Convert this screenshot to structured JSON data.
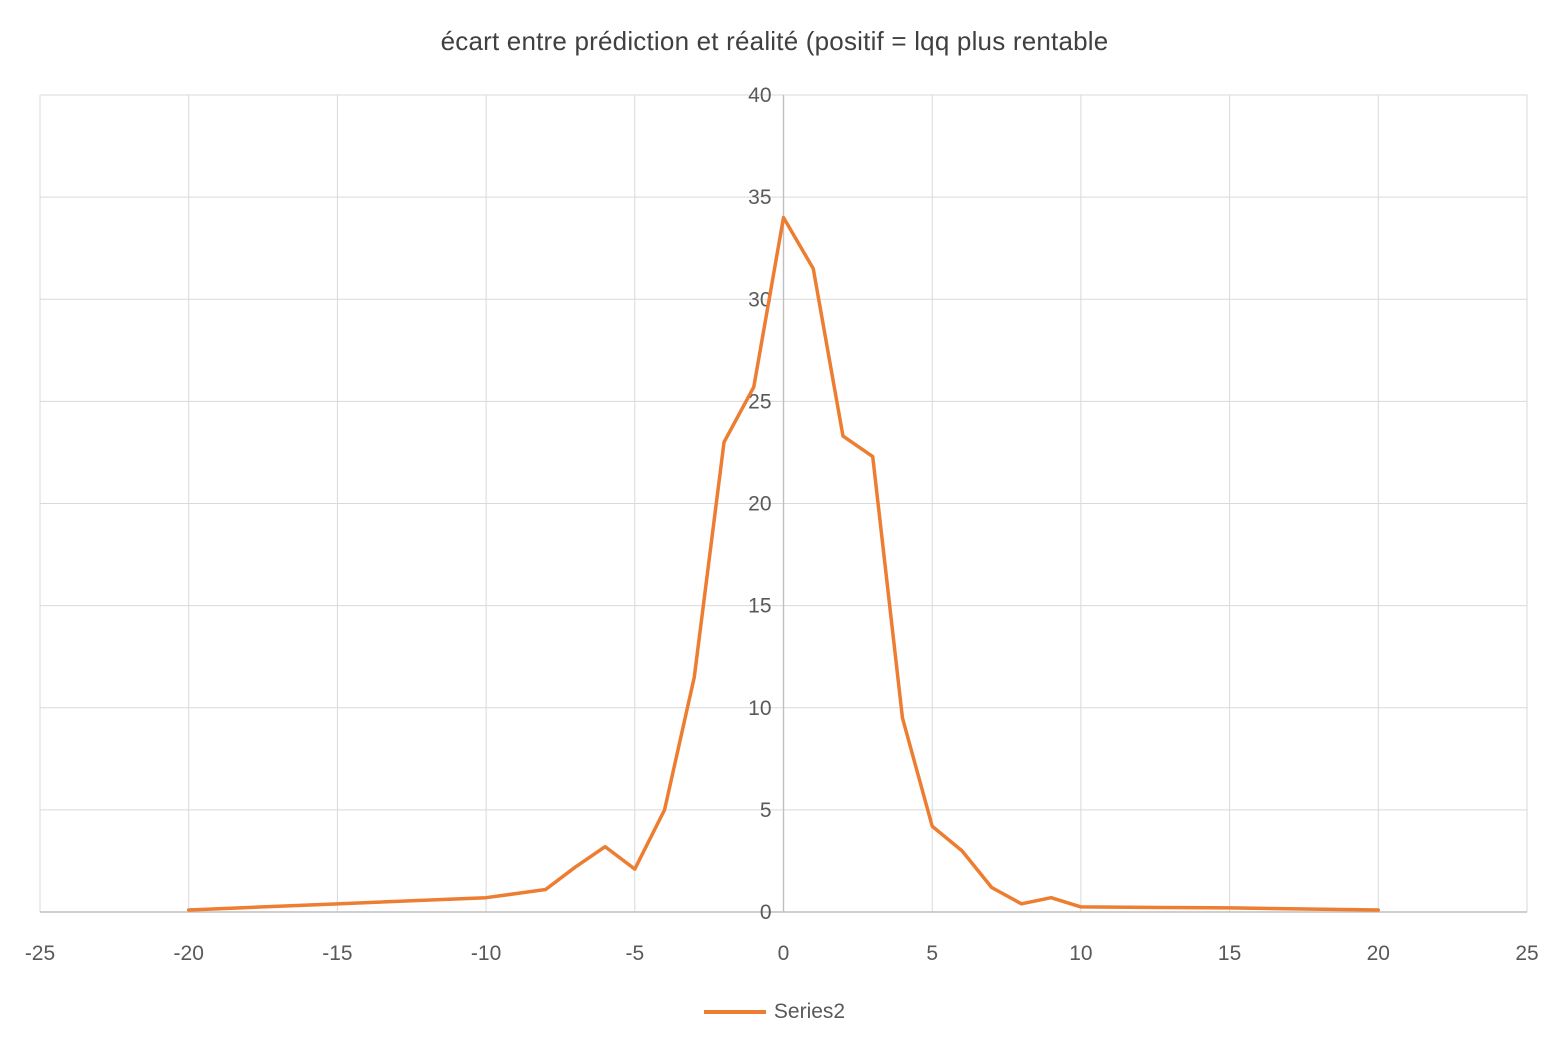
{
  "title": "écart entre prédiction et réalité (positif = lqq plus rentable",
  "legend": {
    "series_label": "Series2"
  },
  "colors": {
    "line": "#ED7D31",
    "grid": "#D9D9D9",
    "axis": "#BFBFBF",
    "tick_text": "#595959",
    "title_text": "#404040"
  },
  "chart_data": {
    "type": "line",
    "title": "écart entre prédiction et réalité (positif = lqq plus rentable",
    "xlabel": "",
    "ylabel": "",
    "xlim": [
      -25,
      25
    ],
    "ylim": [
      0,
      40
    ],
    "x_ticks": [
      -25,
      -20,
      -15,
      -10,
      -5,
      0,
      5,
      10,
      15,
      20,
      25
    ],
    "y_ticks": [
      0,
      5,
      10,
      15,
      20,
      25,
      30,
      35,
      40
    ],
    "grid": true,
    "legend_position": "bottom",
    "series": [
      {
        "name": "Series2",
        "points": [
          [
            -20,
            0.1
          ],
          [
            -15,
            0.4
          ],
          [
            -10,
            0.7
          ],
          [
            -8,
            1.1
          ],
          [
            -7,
            2.2
          ],
          [
            -6,
            3.2
          ],
          [
            -5,
            2.1
          ],
          [
            -4,
            5.0
          ],
          [
            -3,
            11.5
          ],
          [
            -2,
            23.0
          ],
          [
            -1,
            25.7
          ],
          [
            0,
            34.0
          ],
          [
            1,
            31.5
          ],
          [
            2,
            23.3
          ],
          [
            3,
            22.3
          ],
          [
            4,
            9.5
          ],
          [
            5,
            4.2
          ],
          [
            6,
            3.0
          ],
          [
            7,
            1.2
          ],
          [
            8,
            0.4
          ],
          [
            9,
            0.7
          ],
          [
            10,
            0.25
          ],
          [
            15,
            0.2
          ],
          [
            20,
            0.1
          ]
        ]
      }
    ]
  }
}
